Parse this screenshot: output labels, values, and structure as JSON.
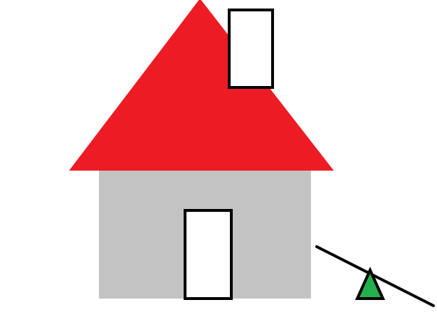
{
  "scene": {
    "background_color": "#ffffff",
    "house": {
      "wall_color": "#c3c3c3",
      "roof_color": "#ed1c24",
      "door_color": "#ffffff",
      "window_color": "#ffffff",
      "outline_color": "#000000"
    },
    "seesaw": {
      "plank_color": "#000000",
      "fulcrum_color": "#22b14c",
      "outline_color": "#000000"
    }
  }
}
